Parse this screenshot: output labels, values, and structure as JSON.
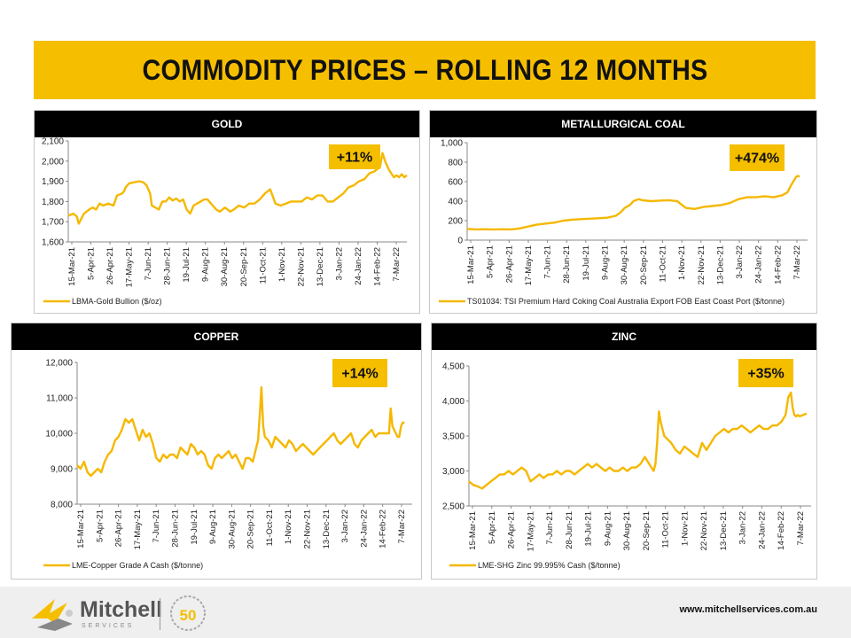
{
  "title": "COMMODITY PRICES – ROLLING 12 MONTHS",
  "footer": {
    "logo_text": "Mitchell",
    "logo_sub": "SERVICES",
    "badge_number": "50",
    "url": "www.mitchellservices.com.au"
  },
  "colors": {
    "accent": "#F5BF00",
    "line": "#F5B800",
    "header": "#000000"
  },
  "chart_data": [
    {
      "type": "line",
      "title": "GOLD",
      "badge": "+11%",
      "legend": "LBMA-Gold Bullion ($/oz)",
      "ylim": [
        1600,
        2100
      ],
      "yticks": [
        1600,
        1700,
        1800,
        1900,
        2000,
        2100
      ],
      "ytick_labels": [
        "1,600",
        "1,700",
        "1,800",
        "1,900",
        "2,000",
        "2,100"
      ],
      "xticks": [
        "15-Mar-21",
        "5-Apr-21",
        "26-Apr-21",
        "17-May-21",
        "7-Jun-21",
        "28-Jun-21",
        "19-Jul-21",
        "9-Aug-21",
        "30-Aug-21",
        "20-Sep-21",
        "11-Oct-21",
        "1-Nov-21",
        "22-Nov-21",
        "13-Dec-21",
        "3-Jan-22",
        "24-Jan-22",
        "14-Feb-22",
        "7-Mar-22"
      ],
      "series": [
        {
          "name": "LBMA-Gold Bullion ($/oz)",
          "x": [
            0,
            6,
            10,
            12,
            18,
            24,
            28,
            32,
            36,
            40,
            46,
            52,
            56,
            62,
            64,
            66,
            70,
            76,
            82,
            86,
            90,
            94,
            96,
            100,
            104,
            108,
            112,
            116,
            120,
            124,
            128,
            132,
            136,
            140,
            144,
            148,
            152,
            156,
            160,
            164,
            170,
            174,
            180,
            186,
            190,
            196,
            202,
            208,
            214,
            220,
            226,
            232,
            238,
            244,
            250,
            256,
            262,
            268,
            274,
            280,
            286,
            292,
            298,
            304,
            310,
            316,
            322,
            328,
            334,
            340,
            346,
            352,
            358,
            361,
            364,
            366,
            368,
            371,
            374,
            377,
            380,
            383,
            386,
            389
          ],
          "y": [
            1730,
            1740,
            1725,
            1690,
            1740,
            1760,
            1770,
            1760,
            1790,
            1780,
            1790,
            1780,
            1830,
            1840,
            1850,
            1870,
            1890,
            1895,
            1900,
            1895,
            1880,
            1840,
            1780,
            1770,
            1760,
            1800,
            1800,
            1820,
            1805,
            1815,
            1800,
            1810,
            1760,
            1740,
            1780,
            1790,
            1800,
            1810,
            1810,
            1790,
            1760,
            1750,
            1770,
            1750,
            1760,
            1780,
            1770,
            1790,
            1790,
            1810,
            1840,
            1860,
            1790,
            1780,
            1790,
            1800,
            1800,
            1800,
            1820,
            1810,
            1830,
            1830,
            1800,
            1800,
            1820,
            1840,
            1870,
            1880,
            1900,
            1910,
            1940,
            1950,
            1970,
            2040,
            2000,
            1980,
            1960,
            1940,
            1920,
            1930,
            1920,
            1935,
            1920,
            1930
          ]
        }
      ]
    },
    {
      "type": "line",
      "title": "METALLURGICAL  COAL",
      "badge": "+474%",
      "legend": "TS01034: TSI Premium Hard Coking Coal Australia Export FOB East Coast Port ($/tonne)",
      "ylim": [
        0,
        1000
      ],
      "yticks": [
        0,
        200,
        400,
        600,
        800,
        1000
      ],
      "ytick_labels": [
        "0",
        "200",
        "400",
        "600",
        "800",
        "1,000"
      ],
      "xticks": [
        "15-Mar-21",
        "5-Apr-21",
        "26-Apr-21",
        "17-May-21",
        "7-Jun-21",
        "28-Jun-21",
        "19-Jul-21",
        "9-Aug-21",
        "30-Aug-21",
        "20-Sep-21",
        "11-Oct-21",
        "1-Nov-21",
        "22-Nov-21",
        "13-Dec-21",
        "3-Jan-22",
        "24-Jan-22",
        "14-Feb-22",
        "7-Mar-22"
      ],
      "series": [
        {
          "name": "TS01034",
          "x": [
            0,
            10,
            20,
            30,
            40,
            50,
            60,
            70,
            80,
            90,
            100,
            110,
            120,
            130,
            140,
            150,
            160,
            170,
            176,
            180,
            186,
            190,
            196,
            200,
            210,
            220,
            230,
            240,
            250,
            260,
            270,
            280,
            290,
            300,
            310,
            320,
            330,
            340,
            350,
            360,
            366,
            370,
            374,
            376,
            378,
            380
          ],
          "y": [
            115,
            110,
            112,
            110,
            112,
            110,
            120,
            140,
            160,
            170,
            180,
            200,
            210,
            215,
            220,
            225,
            230,
            250,
            290,
            330,
            360,
            400,
            420,
            410,
            400,
            405,
            410,
            400,
            330,
            320,
            340,
            350,
            360,
            380,
            420,
            440,
            440,
            450,
            440,
            460,
            490,
            560,
            620,
            650,
            660,
            650
          ]
        }
      ]
    },
    {
      "type": "line",
      "title": "COPPER",
      "badge": "+14%",
      "legend": "LME-Copper Grade A Cash ($/tonne)",
      "ylim": [
        8000,
        12000
      ],
      "yticks": [
        8000,
        9000,
        10000,
        11000,
        12000
      ],
      "ytick_labels": [
        "8,000",
        "9,000",
        "10,000",
        "11,000",
        "12,000"
      ],
      "xticks": [
        "15-Mar-21",
        "5-Apr-21",
        "26-Apr-21",
        "17-May-21",
        "7-Jun-21",
        "28-Jun-21",
        "19-Jul-21",
        "9-Aug-21",
        "30-Aug-21",
        "20-Sep-21",
        "11-Oct-21",
        "1-Nov-21",
        "22-Nov-21",
        "13-Dec-21",
        "3-Jan-22",
        "24-Jan-22",
        "14-Feb-22",
        "7-Mar-22"
      ],
      "series": [
        {
          "name": "LME-Copper Grade A Cash ($/tonne)",
          "x": [
            0,
            4,
            8,
            12,
            16,
            20,
            24,
            28,
            32,
            36,
            40,
            44,
            48,
            52,
            56,
            60,
            64,
            68,
            72,
            76,
            80,
            84,
            88,
            92,
            96,
            100,
            104,
            108,
            112,
            116,
            120,
            124,
            128,
            132,
            136,
            140,
            144,
            148,
            152,
            156,
            160,
            164,
            168,
            172,
            176,
            180,
            184,
            188,
            192,
            196,
            200,
            204,
            208,
            210,
            212,
            214,
            216,
            218,
            222,
            226,
            230,
            234,
            238,
            242,
            246,
            250,
            254,
            258,
            262,
            266,
            270,
            274,
            278,
            282,
            286,
            290,
            294,
            298,
            302,
            306,
            310,
            314,
            318,
            322,
            326,
            330,
            334,
            338,
            342,
            346,
            350,
            354,
            358,
            362,
            364,
            366,
            368,
            370,
            372,
            374,
            376,
            378,
            380
          ],
          "y": [
            9100,
            9000,
            9200,
            8900,
            8800,
            8900,
            9000,
            8900,
            9200,
            9400,
            9500,
            9800,
            9900,
            10100,
            10400,
            10300,
            10400,
            10100,
            9800,
            10100,
            9900,
            10000,
            9700,
            9300,
            9200,
            9400,
            9300,
            9400,
            9400,
            9300,
            9600,
            9500,
            9400,
            9700,
            9600,
            9400,
            9500,
            9400,
            9100,
            9000,
            9300,
            9400,
            9300,
            9400,
            9500,
            9300,
            9400,
            9200,
            9000,
            9300,
            9300,
            9200,
            9600,
            9800,
            10500,
            11300,
            10200,
            9900,
            9800,
            9600,
            9900,
            9800,
            9700,
            9600,
            9800,
            9700,
            9500,
            9600,
            9700,
            9600,
            9500,
            9400,
            9500,
            9600,
            9700,
            9800,
            9900,
            10000,
            9800,
            9700,
            9800,
            9900,
            10000,
            9700,
            9600,
            9800,
            9900,
            10000,
            10100,
            9900,
            10000,
            10000,
            10000,
            10000,
            10700,
            10200,
            10100,
            10000,
            9900,
            9900,
            10200,
            10300,
            10300
          ]
        }
      ]
    },
    {
      "type": "line",
      "title": "ZINC",
      "badge": "+35%",
      "legend": "LME-SHG Zinc 99.995% Cash ($/tonne)",
      "ylim": [
        2500,
        4500
      ],
      "yticks": [
        2500,
        3000,
        3500,
        4000,
        4500
      ],
      "ytick_labels": [
        "2,500",
        "3,000",
        "3,500",
        "4,000",
        "4,500"
      ],
      "xticks": [
        "15-Mar-21",
        "5-Apr-21",
        "26-Apr-21",
        "17-May-21",
        "7-Jun-21",
        "28-Jun-21",
        "19-Jul-21",
        "9-Aug-21",
        "30-Aug-21",
        "20-Sep-21",
        "11-Oct-21",
        "1-Nov-21",
        "22-Nov-21",
        "13-Dec-21",
        "3-Jan-22",
        "24-Jan-22",
        "14-Feb-22",
        "7-Mar-22"
      ],
      "series": [
        {
          "name": "LME-SHG Zinc 99.995% Cash ($/tonne)",
          "x": [
            0,
            5,
            10,
            15,
            20,
            25,
            30,
            35,
            40,
            45,
            50,
            55,
            60,
            65,
            70,
            75,
            80,
            85,
            90,
            95,
            100,
            105,
            110,
            115,
            120,
            125,
            130,
            135,
            140,
            145,
            150,
            155,
            160,
            165,
            170,
            175,
            180,
            185,
            190,
            195,
            200,
            205,
            210,
            212,
            214,
            216,
            218,
            222,
            226,
            230,
            235,
            240,
            245,
            250,
            255,
            260,
            265,
            270,
            275,
            280,
            285,
            290,
            295,
            300,
            305,
            310,
            315,
            320,
            325,
            330,
            335,
            340,
            345,
            350,
            355,
            360,
            363,
            366,
            368,
            370,
            372,
            374,
            376,
            380,
            384
          ],
          "y": [
            2850,
            2800,
            2780,
            2750,
            2800,
            2850,
            2900,
            2950,
            2950,
            3000,
            2950,
            3000,
            3050,
            3000,
            2850,
            2900,
            2950,
            2900,
            2950,
            2950,
            3000,
            2950,
            3000,
            3000,
            2950,
            3000,
            3050,
            3100,
            3050,
            3100,
            3050,
            3000,
            3050,
            3000,
            3000,
            3050,
            3000,
            3050,
            3050,
            3100,
            3200,
            3100,
            3000,
            3100,
            3400,
            3850,
            3700,
            3500,
            3450,
            3400,
            3300,
            3250,
            3350,
            3300,
            3250,
            3200,
            3400,
            3300,
            3400,
            3500,
            3550,
            3600,
            3550,
            3600,
            3600,
            3650,
            3600,
            3550,
            3600,
            3650,
            3600,
            3600,
            3650,
            3650,
            3700,
            3800,
            4050,
            4120,
            3900,
            3800,
            3780,
            3800,
            3780,
            3800,
            3820
          ]
        }
      ]
    }
  ]
}
